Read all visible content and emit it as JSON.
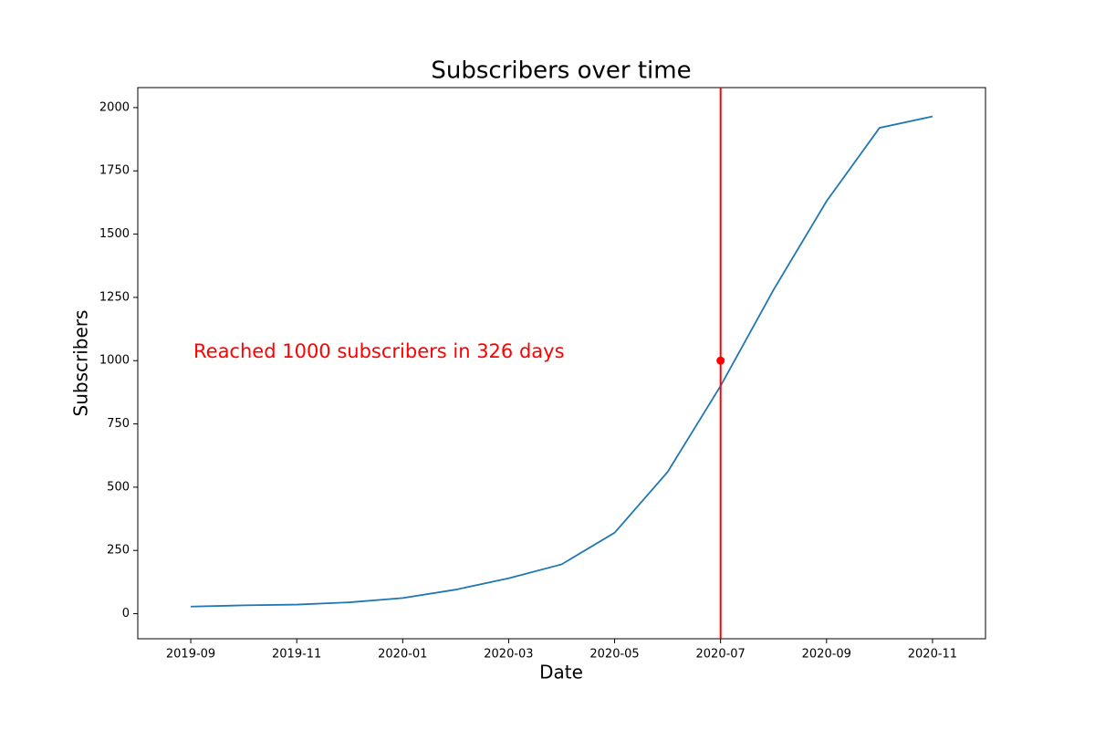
{
  "chart_data": {
    "type": "line",
    "title": "Subscribers over time",
    "xlabel": "Date",
    "ylabel": "Subscribers",
    "x": [
      "2019-09",
      "2019-10",
      "2019-11",
      "2019-12",
      "2020-01",
      "2020-02",
      "2020-03",
      "2020-04",
      "2020-05",
      "2020-06",
      "2020-07",
      "2020-08",
      "2020-09",
      "2020-10",
      "2020-11"
    ],
    "values": [
      28,
      33,
      36,
      45,
      62,
      95,
      140,
      195,
      320,
      560,
      900,
      1280,
      1630,
      1920,
      1965
    ],
    "color": "#1f77b4",
    "xlim": [
      "2019-08",
      "2020-12"
    ],
    "xticks": [
      "2019-09",
      "2019-11",
      "2020-01",
      "2020-03",
      "2020-05",
      "2020-07",
      "2020-09",
      "2020-11"
    ],
    "ylim": [
      -99,
      2079
    ],
    "yticks": [
      0,
      250,
      500,
      750,
      1000,
      1250,
      1500,
      1750,
      2000
    ],
    "marker": {
      "x": "2020-07",
      "y": 1000,
      "color": "#ff0000"
    },
    "annotation": "Reached 1000 subscribers in 326 days"
  }
}
